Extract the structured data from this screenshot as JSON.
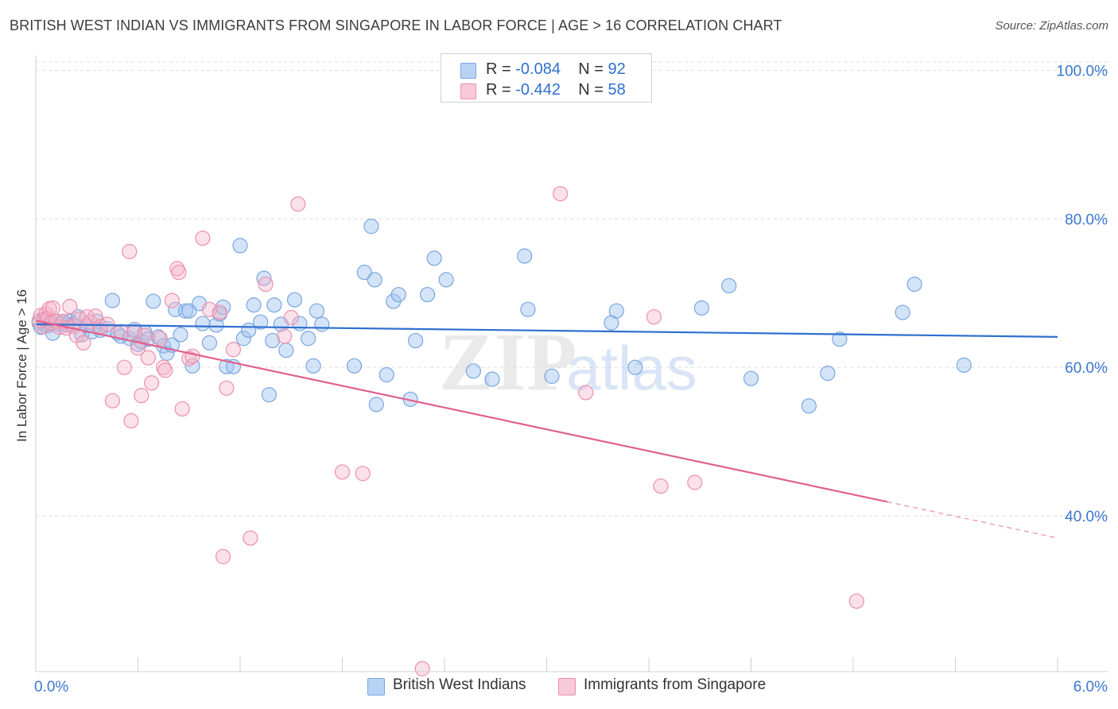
{
  "title": "BRITISH WEST INDIAN VS IMMIGRANTS FROM SINGAPORE IN LABOR FORCE | AGE > 16 CORRELATION CHART",
  "source": "Source: ZipAtlas.com",
  "watermark": {
    "zip": "ZIP",
    "atlas": "atlas"
  },
  "legend": {
    "rows": [
      {
        "r_label": "R = ",
        "r_value": "-0.084",
        "n_label": "N = ",
        "n_value": "92"
      },
      {
        "r_label": "R = ",
        "r_value": "-0.442",
        "n_label": "N = ",
        "n_value": "58"
      }
    ]
  },
  "bottom_legend": {
    "series1": "British West Indians",
    "series2": "Immigrants from Singapore"
  },
  "colors": {
    "blue_fill": "rgba(160,196,240,0.45)",
    "blue_stroke": "#7aa6e0",
    "blue_line": "#2f6fcf",
    "pink_fill": "rgba(246,180,200,0.40)",
    "pink_stroke": "#ee8fae",
    "pink_line": "#e0608e",
    "axis_text": "#3b78d0"
  },
  "chart_data": {
    "type": "scatter",
    "title": "BRITISH WEST INDIAN VS IMMIGRANTS FROM SINGAPORE IN LABOR FORCE | AGE > 16 CORRELATION CHART",
    "xlabel": "",
    "ylabel": "In Labor Force | Age > 16",
    "xlim": [
      0,
      6
    ],
    "ylim": [
      19,
      102
    ],
    "x_tick_labels": [
      {
        "value": 0,
        "label": "0.0%"
      },
      {
        "value": 6,
        "label": "6.0%"
      }
    ],
    "y_ticks": [
      {
        "value": 40,
        "label": "40.0%"
      },
      {
        "value": 60,
        "label": "60.0%"
      },
      {
        "value": 80,
        "label": "80.0%"
      },
      {
        "value": 100,
        "label": "100.0%"
      }
    ],
    "x_minor_ticks": [
      0.6,
      1.2,
      1.8,
      2.4,
      3.0,
      3.6,
      4.2,
      4.8,
      5.4,
      6.0
    ],
    "grid": true,
    "series": [
      {
        "name": "British West Indians",
        "R": -0.084,
        "N": 92,
        "trend": {
          "x": [
            0,
            6
          ],
          "y": [
            65.8,
            64.1
          ],
          "dashed_from": null
        },
        "points": [
          [
            0.02,
            66.0
          ],
          [
            0.03,
            65.4
          ],
          [
            0.04,
            66.4
          ],
          [
            0.05,
            65.8
          ],
          [
            0.06,
            66.6
          ],
          [
            0.07,
            65.6
          ],
          [
            0.08,
            66.0
          ],
          [
            0.1,
            64.6
          ],
          [
            0.12,
            66.2
          ],
          [
            0.14,
            65.8
          ],
          [
            0.16,
            66.0
          ],
          [
            0.18,
            65.7
          ],
          [
            0.2,
            66.2
          ],
          [
            0.22,
            65.8
          ],
          [
            0.25,
            66.8
          ],
          [
            0.27,
            64.4
          ],
          [
            0.3,
            65.6
          ],
          [
            0.33,
            64.8
          ],
          [
            0.36,
            66.2
          ],
          [
            0.38,
            65.0
          ],
          [
            0.42,
            65.2
          ],
          [
            0.45,
            69.0
          ],
          [
            0.48,
            64.6
          ],
          [
            0.5,
            64.2
          ],
          [
            0.55,
            63.9
          ],
          [
            0.58,
            65.1
          ],
          [
            0.6,
            63.1
          ],
          [
            0.62,
            63.5
          ],
          [
            0.64,
            64.7
          ],
          [
            0.66,
            63.8
          ],
          [
            0.69,
            68.9
          ],
          [
            0.72,
            64.1
          ],
          [
            0.75,
            62.9
          ],
          [
            0.77,
            61.9
          ],
          [
            0.8,
            63.0
          ],
          [
            0.82,
            67.8
          ],
          [
            0.85,
            64.4
          ],
          [
            0.88,
            67.6
          ],
          [
            0.9,
            67.6
          ],
          [
            0.92,
            60.2
          ],
          [
            0.96,
            68.6
          ],
          [
            0.98,
            65.9
          ],
          [
            1.02,
            63.3
          ],
          [
            1.06,
            65.7
          ],
          [
            1.08,
            67.2
          ],
          [
            1.1,
            68.1
          ],
          [
            1.12,
            60.1
          ],
          [
            1.16,
            60.1
          ],
          [
            1.2,
            76.4
          ],
          [
            1.22,
            63.9
          ],
          [
            1.25,
            65.0
          ],
          [
            1.28,
            68.4
          ],
          [
            1.32,
            66.1
          ],
          [
            1.34,
            72.0
          ],
          [
            1.37,
            56.3
          ],
          [
            1.39,
            63.6
          ],
          [
            1.4,
            68.4
          ],
          [
            1.44,
            65.8
          ],
          [
            1.47,
            62.3
          ],
          [
            1.52,
            69.1
          ],
          [
            1.55,
            65.9
          ],
          [
            1.6,
            63.9
          ],
          [
            1.63,
            60.2
          ],
          [
            1.65,
            67.6
          ],
          [
            1.68,
            65.8
          ],
          [
            1.87,
            60.2
          ],
          [
            1.93,
            72.8
          ],
          [
            1.97,
            79.0
          ],
          [
            1.99,
            71.8
          ],
          [
            2.0,
            55.0
          ],
          [
            2.06,
            59.0
          ],
          [
            2.1,
            68.9
          ],
          [
            2.13,
            69.8
          ],
          [
            2.2,
            55.7
          ],
          [
            2.23,
            63.6
          ],
          [
            2.3,
            69.8
          ],
          [
            2.34,
            74.7
          ],
          [
            2.41,
            71.8
          ],
          [
            2.57,
            59.5
          ],
          [
            2.68,
            58.4
          ],
          [
            2.87,
            75.0
          ],
          [
            2.89,
            67.8
          ],
          [
            3.03,
            58.8
          ],
          [
            3.38,
            66.0
          ],
          [
            3.41,
            67.6
          ],
          [
            3.52,
            60.0
          ],
          [
            3.91,
            68.0
          ],
          [
            4.07,
            71.0
          ],
          [
            4.2,
            58.5
          ],
          [
            4.54,
            54.8
          ],
          [
            4.65,
            59.2
          ],
          [
            4.72,
            63.8
          ],
          [
            5.09,
            67.4
          ],
          [
            5.16,
            71.2
          ],
          [
            5.45,
            60.3
          ]
        ]
      },
      {
        "name": "Immigrants from Singapore",
        "R": -0.442,
        "N": 58,
        "trend": {
          "x": [
            0,
            6
          ],
          "y": [
            66.3,
            37.0
          ],
          "dashed_from": 5.0
        },
        "points": [
          [
            0.02,
            66.3
          ],
          [
            0.03,
            67.0
          ],
          [
            0.04,
            65.5
          ],
          [
            0.05,
            66.5
          ],
          [
            0.06,
            67.2
          ],
          [
            0.07,
            66.6
          ],
          [
            0.08,
            67.9
          ],
          [
            0.09,
            65.9
          ],
          [
            0.1,
            68.0
          ],
          [
            0.12,
            66.2
          ],
          [
            0.14,
            65.4
          ],
          [
            0.16,
            66.2
          ],
          [
            0.18,
            65.3
          ],
          [
            0.2,
            68.2
          ],
          [
            0.22,
            65.5
          ],
          [
            0.24,
            64.3
          ],
          [
            0.26,
            66.5
          ],
          [
            0.28,
            63.3
          ],
          [
            0.3,
            66.8
          ],
          [
            0.32,
            66.1
          ],
          [
            0.35,
            66.9
          ],
          [
            0.38,
            65.5
          ],
          [
            0.42,
            65.8
          ],
          [
            0.45,
            55.5
          ],
          [
            0.5,
            64.8
          ],
          [
            0.52,
            60.0
          ],
          [
            0.55,
            75.6
          ],
          [
            0.56,
            52.8
          ],
          [
            0.58,
            64.8
          ],
          [
            0.6,
            62.6
          ],
          [
            0.62,
            56.2
          ],
          [
            0.64,
            64.3
          ],
          [
            0.66,
            61.3
          ],
          [
            0.68,
            57.9
          ],
          [
            0.73,
            63.9
          ],
          [
            0.75,
            60.0
          ],
          [
            0.76,
            59.6
          ],
          [
            0.8,
            69.0
          ],
          [
            0.83,
            73.3
          ],
          [
            0.84,
            72.8
          ],
          [
            0.86,
            54.4
          ],
          [
            0.9,
            61.2
          ],
          [
            0.92,
            61.5
          ],
          [
            0.98,
            77.4
          ],
          [
            1.02,
            67.8
          ],
          [
            1.08,
            67.4
          ],
          [
            1.1,
            34.5
          ],
          [
            1.12,
            57.2
          ],
          [
            1.16,
            62.4
          ],
          [
            1.26,
            37.0
          ],
          [
            1.35,
            71.2
          ],
          [
            1.46,
            64.2
          ],
          [
            1.5,
            66.7
          ],
          [
            1.54,
            82.0
          ],
          [
            1.8,
            45.9
          ],
          [
            1.92,
            45.7
          ],
          [
            2.27,
            19.4
          ],
          [
            3.08,
            83.4
          ],
          [
            3.23,
            56.6
          ],
          [
            3.63,
            66.8
          ],
          [
            3.67,
            44.0
          ],
          [
            3.87,
            44.5
          ],
          [
            4.82,
            28.5
          ]
        ]
      }
    ]
  }
}
